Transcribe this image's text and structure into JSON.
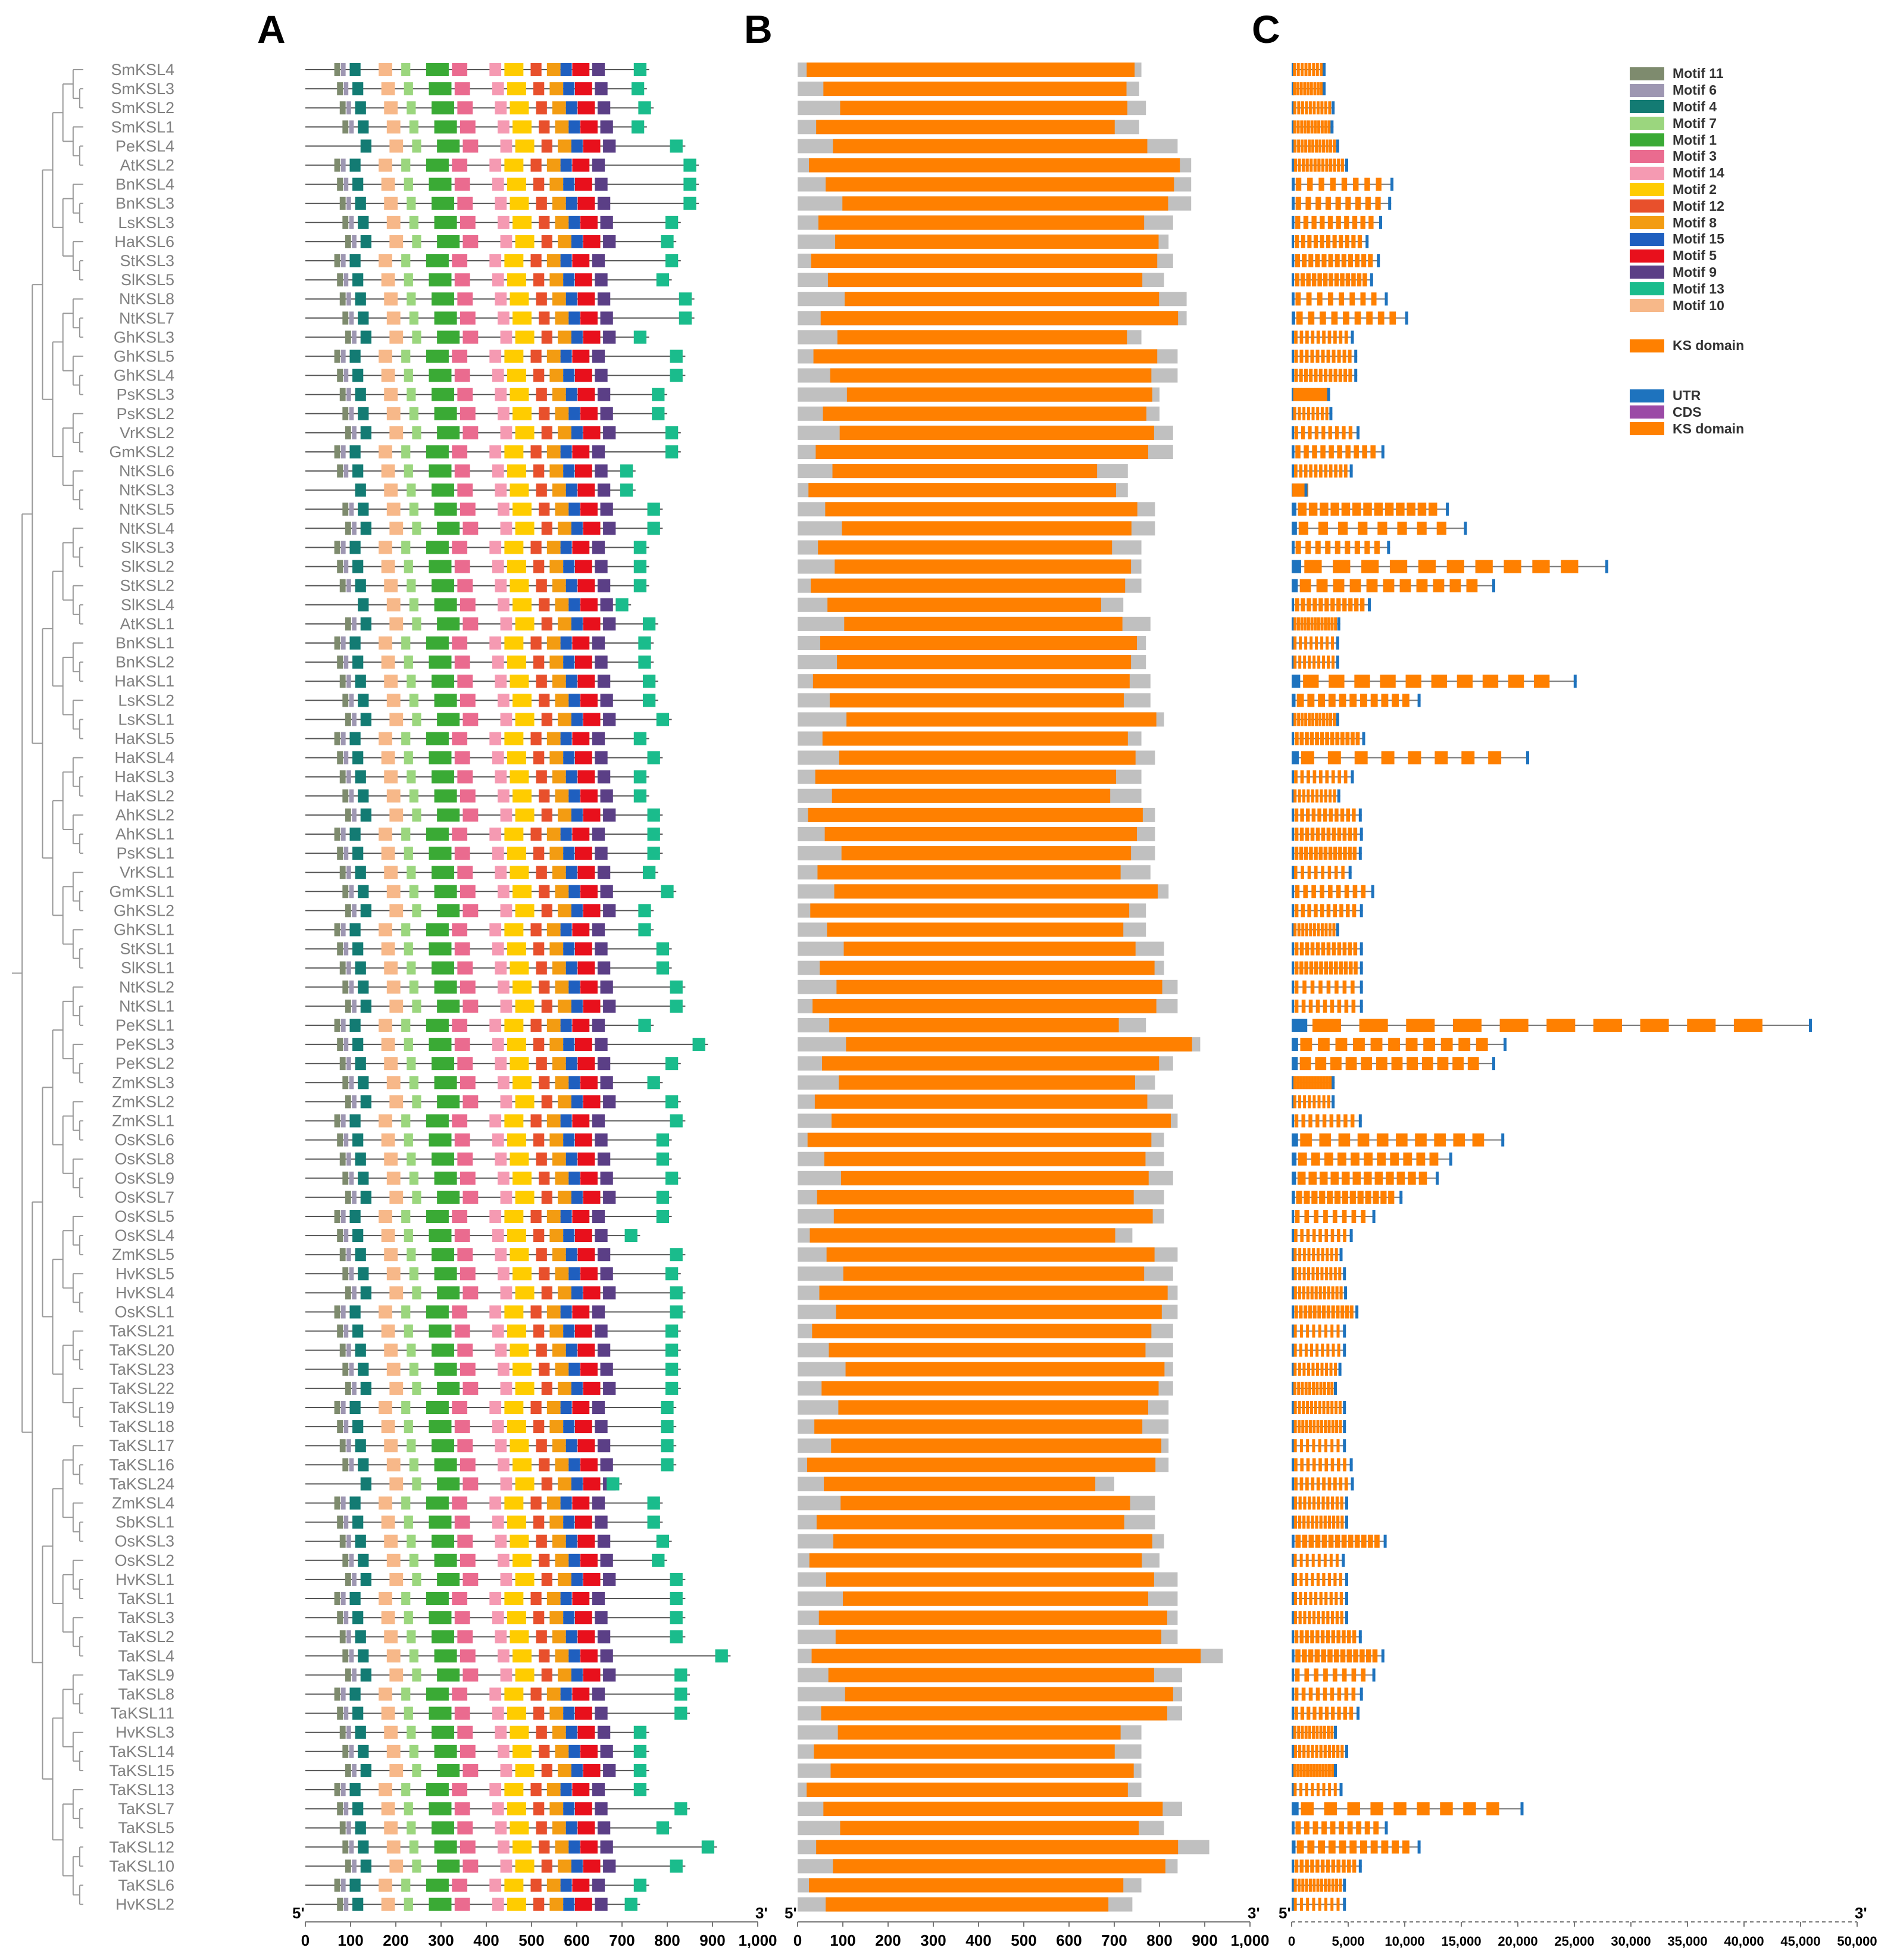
{
  "panel_labels": [
    "A",
    "B",
    "C"
  ],
  "genes": [
    "SmKSL4",
    "SmKSL3",
    "SmKSL2",
    "SmKSL1",
    "PeKSL4",
    "AtKSL2",
    "BnKSL4",
    "BnKSL3",
    "LsKSL3",
    "HaKSL6",
    "StKSL3",
    "SlKSL5",
    "NtKSL8",
    "NtKSL7",
    "GhKSL3",
    "GhKSL5",
    "GhKSL4",
    "PsKSL3",
    "PsKSL2",
    "VrKSL2",
    "GmKSL2",
    "NtKSL6",
    "NtKSL3",
    "NtKSL5",
    "NtKSL4",
    "SlKSL3",
    "SlKSL2",
    "StKSL2",
    "SlKSL4",
    "AtKSL1",
    "BnKSL1",
    "BnKSL2",
    "HaKSL1",
    "LsKSL2",
    "LsKSL1",
    "HaKSL5",
    "HaKSL4",
    "HaKSL3",
    "HaKSL2",
    "AhKSL2",
    "AhKSL1",
    "PsKSL1",
    "VrKSL1",
    "GmKSL1",
    "GhKSL2",
    "GhKSL1",
    "StKSL1",
    "SlKSL1",
    "NtKSL2",
    "NtKSL1",
    "PeKSL1",
    "PeKSL3",
    "PeKSL2",
    "ZmKSL3",
    "ZmKSL2",
    "ZmKSL1",
    "OsKSL6",
    "OsKSL8",
    "OsKSL9",
    "OsKSL7",
    "OsKSL5",
    "OsKSL4",
    "ZmKSL5",
    "HvKSL5",
    "HvKSL4",
    "OsKSL1",
    "TaKSL21",
    "TaKSL20",
    "TaKSL23",
    "TaKSL22",
    "TaKSL19",
    "TaKSL18",
    "TaKSL17",
    "TaKSL16",
    "TaKSL24",
    "ZmKSL4",
    "SbKSL1",
    "OsKSL3",
    "OsKSL2",
    "HvKSL1",
    "TaKSL1",
    "TaKSL3",
    "TaKSL2",
    "TaKSL4",
    "TaKSL9",
    "TaKSL8",
    "TaKSL11",
    "HvKSL3",
    "TaKSL14",
    "TaKSL15",
    "TaKSL13",
    "TaKSL7",
    "TaKSL5",
    "TaKSL12",
    "TaKSL10",
    "TaKSL6",
    "HvKSL2"
  ],
  "motif_legend": [
    {
      "label": "Motif 11",
      "color": "#7e8b6e"
    },
    {
      "label": "Motif 6",
      "color": "#9e97b2"
    },
    {
      "label": "Motif 4",
      "color": "#137b73"
    },
    {
      "label": "Motif 7",
      "color": "#9bd67e"
    },
    {
      "label": "Motif 1",
      "color": "#3aaa35"
    },
    {
      "label": "Motif 3",
      "color": "#ea6b8f"
    },
    {
      "label": "Motif 14",
      "color": "#f59ab2"
    },
    {
      "label": "Motif 2",
      "color": "#ffcc00"
    },
    {
      "label": "Motif 12",
      "color": "#e8502c"
    },
    {
      "label": "Motif 8",
      "color": "#f39c12"
    },
    {
      "label": "Motif 15",
      "color": "#1f5fbf"
    },
    {
      "label": "Motif 5",
      "color": "#e8101c"
    },
    {
      "label": "Motif 9",
      "color": "#5b3f86"
    },
    {
      "label": "Motif 13",
      "color": "#1abc8c"
    },
    {
      "label": "Motif 10",
      "color": "#f7b889"
    }
  ],
  "ks_legend": {
    "label": "KS domain",
    "color": "#ff8000"
  },
  "gene_legend": [
    {
      "label": "UTR",
      "color": "#1e73be"
    },
    {
      "label": "CDS",
      "color": "#9b4aa6"
    },
    {
      "label": "KS domain",
      "color": "#ff8000"
    }
  ],
  "axes": {
    "end5": "5'",
    "end3": "3'",
    "a_ticks": [
      "0",
      "100",
      "200",
      "300",
      "400",
      "500",
      "600",
      "700",
      "800",
      "900",
      "1,000"
    ],
    "b_ticks": [
      "0",
      "100",
      "200",
      "300",
      "400",
      "500",
      "600",
      "700",
      "800",
      "900",
      "1,000"
    ],
    "c_ticks": [
      "0",
      "5,000",
      "10,000",
      "15,000",
      "20,000",
      "25,000",
      "30,000",
      "35,000",
      "40,000",
      "45,000",
      "50,000"
    ]
  },
  "protein_lengths": [
    760,
    755,
    770,
    755,
    840,
    870,
    870,
    870,
    830,
    820,
    830,
    810,
    860,
    860,
    760,
    840,
    840,
    800,
    800,
    830,
    830,
    730,
    730,
    790,
    790,
    760,
    760,
    760,
    720,
    780,
    770,
    770,
    780,
    780,
    810,
    760,
    790,
    760,
    760,
    790,
    790,
    790,
    780,
    820,
    770,
    770,
    810,
    810,
    840,
    840,
    770,
    890,
    830,
    790,
    830,
    840,
    810,
    810,
    830,
    810,
    810,
    740,
    840,
    830,
    840,
    840,
    830,
    830,
    830,
    830,
    820,
    820,
    820,
    820,
    700,
    790,
    790,
    810,
    800,
    840,
    840,
    840,
    840,
    940,
    850,
    850,
    850,
    760,
    760,
    760,
    760,
    850,
    810,
    910,
    840,
    760,
    740
  ],
  "gene_lengths_bp": [
    3000,
    3000,
    3800,
    3700,
    4200,
    5000,
    9000,
    8800,
    8000,
    6800,
    7800,
    7200,
    8500,
    10300,
    5500,
    5800,
    5800,
    3400,
    3600,
    6000,
    8200,
    5400,
    1400,
    13900,
    15500,
    8700,
    28000,
    18000,
    7000,
    4300,
    4200,
    4200,
    25200,
    11400,
    4200,
    6500,
    21000,
    5500,
    4300,
    6200,
    6300,
    6200,
    5300,
    7300,
    6300,
    4200,
    6300,
    6300,
    6300,
    6300,
    46000,
    19000,
    18000,
    3800,
    3800,
    6200,
    18800,
    14200,
    13000,
    9800,
    7400,
    5400,
    4500,
    4800,
    4900,
    5900,
    4800,
    4800,
    4400,
    4000,
    4800,
    4800,
    4800,
    5400,
    5500,
    5000,
    5000,
    8400,
    4700,
    5000,
    5000,
    5000,
    6200,
    8200,
    7400,
    6300,
    6000,
    4000,
    5000,
    4000,
    4500,
    20500,
    8500,
    11400,
    6200,
    4800,
    4800
  ]
}
